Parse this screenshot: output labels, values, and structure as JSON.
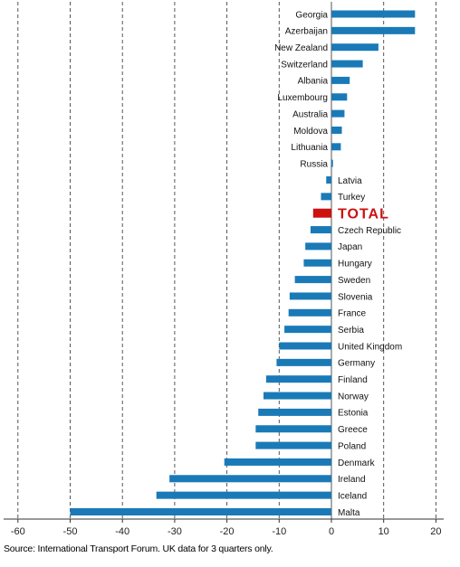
{
  "chart_data": {
    "type": "bar",
    "orientation": "horizontal",
    "title": "",
    "xlabel": "",
    "ylabel": "",
    "xlim": [
      -62,
      22
    ],
    "xticks": [
      -60,
      -50,
      -40,
      -30,
      -20,
      -10,
      0,
      10,
      20
    ],
    "grid": "vertical-dashed",
    "bar_color": "#1a7ab8",
    "highlight_color": "#cc1111",
    "categories": [
      "Georgia",
      "Azerbaijan",
      "New Zealand",
      "Switzerland",
      "Albania",
      "Luxembourg",
      "Australia",
      "Moldova",
      "Lithuania",
      "Russia",
      "Latvia",
      "Turkey",
      "TOTAL",
      "Czech Republic",
      "Japan",
      "Hungary",
      "Sweden",
      "Slovenia",
      "France",
      "Serbia",
      "United Kingdom",
      "Germany",
      "Finland",
      "Norway",
      "Estonia",
      "Greece",
      "Poland",
      "Denmark",
      "Ireland",
      "Iceland",
      "Malta"
    ],
    "values": [
      16,
      16,
      9,
      6,
      3.5,
      3,
      2.5,
      2,
      1.8,
      0.3,
      -1,
      -2,
      -3.5,
      -4,
      -5,
      -5.3,
      -7,
      -8,
      -8.2,
      -9,
      -10,
      -10.5,
      -12.5,
      -13,
      -14,
      -14.5,
      -14.5,
      -20.5,
      -31,
      -33.5,
      -50
    ],
    "highlight": "TOTAL"
  },
  "source": "Source: International Transport Forum. UK data for 3 quarters only."
}
